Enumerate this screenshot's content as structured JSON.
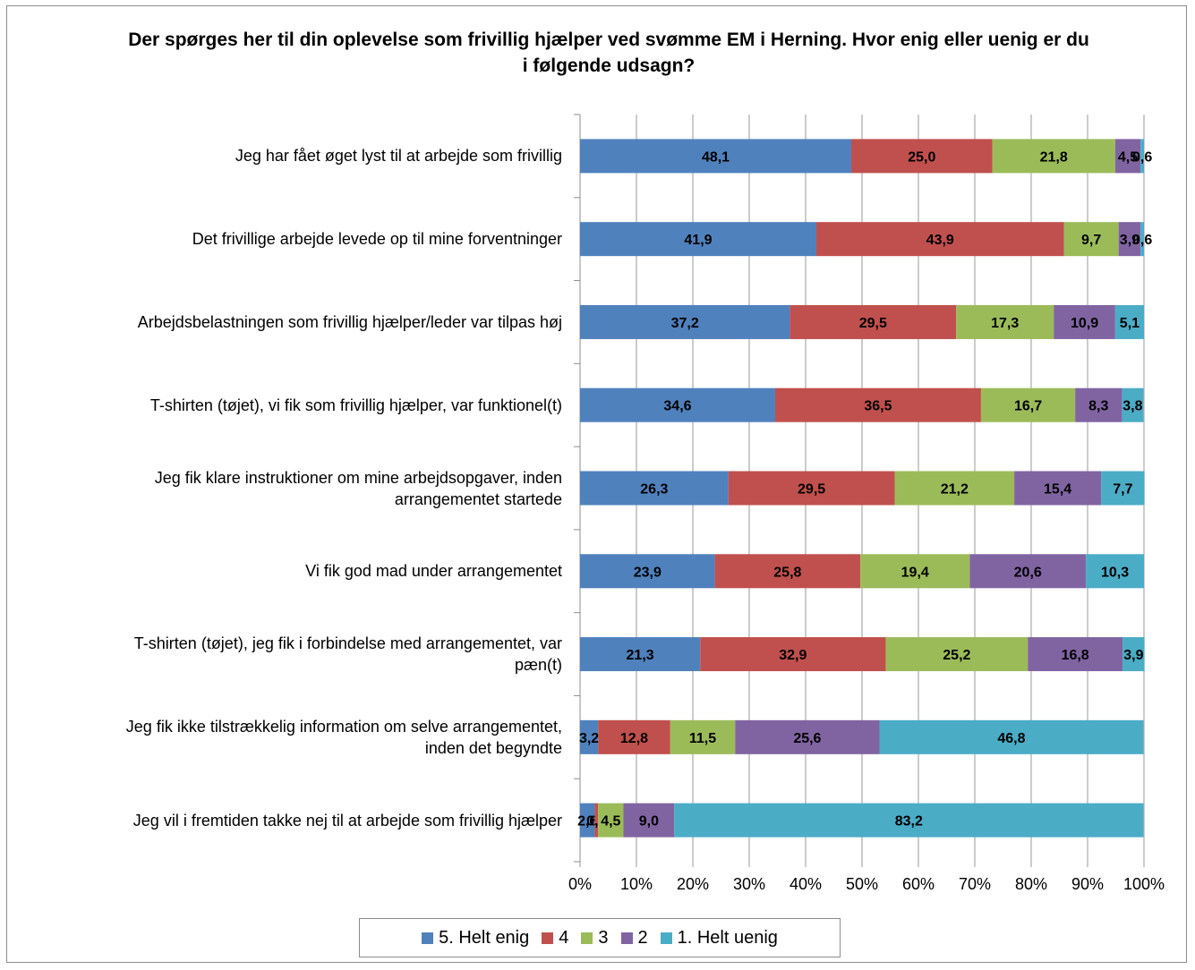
{
  "chart_data": {
    "type": "bar",
    "orientation": "horizontal",
    "stacked": "percent",
    "title": "Der spørges her til din oplevelse som frivillig hjælper ved svømme EM i Herning.  Hvor enig eller uenig er du i følgende udsagn?",
    "categories": [
      "Jeg har fået øget lyst til at arbejde som frivillig",
      "Det frivillige arbejde levede op til mine forventninger",
      "Arbejdsbelastningen som frivillig hjælper/leder var tilpas høj",
      "T-shirten (tøjet), vi fik som frivillig hjælper, var funktionel(t)",
      "Jeg fik klare instruktioner om mine arbejdsopgaver, inden arrangementet startede",
      "Vi fik god mad under arrangementet",
      "T-shirten (tøjet), jeg fik i forbindelse med arrangementet, var pæn(t)",
      "Jeg fik ikke tilstrækkelig information om selve arrangementet, inden det begyndte",
      "Jeg vil i fremtiden takke nej til at arbejde som frivillig hjælper"
    ],
    "category_lines": [
      [
        "Jeg har fået øget lyst til at arbejde som frivillig"
      ],
      [
        "Det frivillige arbejde levede op til mine forventninger"
      ],
      [
        "Arbejdsbelastningen som frivillig hjælper/leder var tilpas høj"
      ],
      [
        "T-shirten (tøjet), vi fik som frivillig hjælper, var funktionel(t)"
      ],
      [
        "Jeg fik klare instruktioner om mine arbejdsopgaver, inden",
        "arrangementet startede"
      ],
      [
        "Vi fik god mad under arrangementet"
      ],
      [
        "T-shirten (tøjet), jeg fik i forbindelse med arrangementet, var",
        "pæn(t)"
      ],
      [
        "Jeg fik ikke tilstrækkelig information om selve arrangementet,",
        "inden det begyndte"
      ],
      [
        "Jeg vil i fremtiden takke nej til at arbejde som frivillig hjælper"
      ]
    ],
    "series": [
      {
        "name": "5. Helt enig",
        "color": "#4f81bd",
        "values": [
          48.1,
          41.9,
          37.2,
          34.6,
          26.3,
          23.9,
          21.3,
          3.2,
          2.6
        ]
      },
      {
        "name": "4",
        "color": "#c0504d",
        "values": [
          25.0,
          43.9,
          29.5,
          36.5,
          29.5,
          25.8,
          32.9,
          12.8,
          0.6
        ]
      },
      {
        "name": "3",
        "color": "#9bbb59",
        "values": [
          21.8,
          9.7,
          17.3,
          16.7,
          21.2,
          19.4,
          25.2,
          11.5,
          4.5
        ]
      },
      {
        "name": "2",
        "color": "#8064a2",
        "values": [
          4.5,
          3.9,
          10.9,
          8.3,
          15.4,
          20.6,
          16.8,
          25.6,
          9.0
        ]
      },
      {
        "name": "1. Helt uenig",
        "color": "#4bacc6",
        "values": [
          0.6,
          0.6,
          5.1,
          3.8,
          7.7,
          10.3,
          3.9,
          46.8,
          83.2
        ]
      }
    ],
    "data_labels": [
      [
        "48,1",
        "25,0",
        "21,8",
        "4,5",
        "0,6"
      ],
      [
        "41,9",
        "43,9",
        "9,7",
        "3,9",
        "0,6"
      ],
      [
        "37,2",
        "29,5",
        "17,3",
        "10,9",
        "5,1"
      ],
      [
        "34,6",
        "36,5",
        "16,7",
        "8,3",
        "3,8"
      ],
      [
        "26,3",
        "29,5",
        "21,2",
        "15,4",
        "7,7"
      ],
      [
        "23,9",
        "25,8",
        "19,4",
        "20,6",
        "10,3"
      ],
      [
        "21,3",
        "32,9",
        "25,2",
        "16,8",
        "3,9"
      ],
      [
        "3,2",
        "12,8",
        "11,5",
        "25,6",
        "46,8"
      ],
      [
        "2,6",
        "0,6",
        "4,5",
        "9,0",
        "83,2"
      ]
    ],
    "x_ticks": [
      "0%",
      "10%",
      "20%",
      "30%",
      "40%",
      "50%",
      "60%",
      "70%",
      "80%",
      "90%",
      "100%"
    ],
    "xlim": [
      0,
      100
    ],
    "grid": true,
    "legend_position": "bottom"
  }
}
